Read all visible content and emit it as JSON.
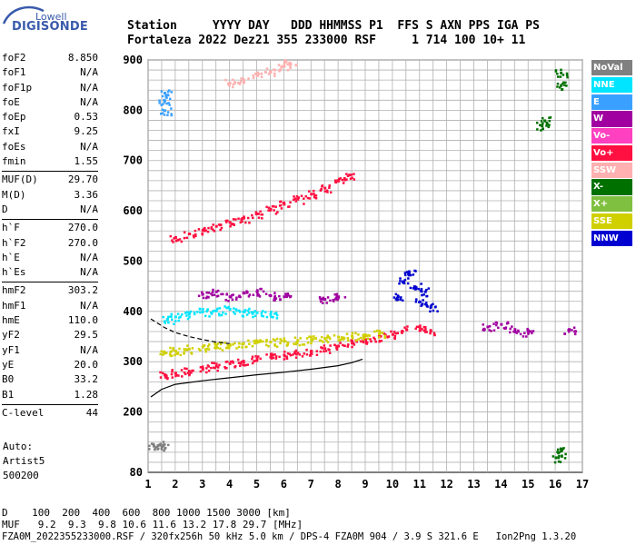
{
  "logo": {
    "line1": "Lowell",
    "line2": "DIGISONDE"
  },
  "header": {
    "line1": "Station     YYYY DAY   DDD HHMMSS P1  FFS S AXN PPS IGA PS",
    "line2": "Fortaleza 2022 Dez21 355 233000 RSF     1 714 100 10+ 11"
  },
  "params": {
    "group1": [
      {
        "name": "foF2",
        "value": "8.850"
      },
      {
        "name": "foF1",
        "value": "N/A"
      },
      {
        "name": "foF1p",
        "value": "N/A"
      },
      {
        "name": "foE",
        "value": "N/A"
      },
      {
        "name": "foEp",
        "value": "0.53"
      },
      {
        "name": "fxI",
        "value": "9.25"
      },
      {
        "name": "foEs",
        "value": "N/A"
      },
      {
        "name": "fmin",
        "value": "1.55"
      }
    ],
    "group2": [
      {
        "name": "MUF(D)",
        "value": "29.70"
      },
      {
        "name": "M(D)",
        "value": "3.36"
      },
      {
        "name": "D",
        "value": "N/A"
      }
    ],
    "group3": [
      {
        "name": "h`F",
        "value": "270.0"
      },
      {
        "name": "h`F2",
        "value": "270.0"
      },
      {
        "name": "h`E",
        "value": "N/A"
      },
      {
        "name": "h`Es",
        "value": "N/A"
      }
    ],
    "group4": [
      {
        "name": "hmF2",
        "value": "303.2"
      },
      {
        "name": "hmF1",
        "value": "N/A"
      },
      {
        "name": "hmE",
        "value": "110.0"
      },
      {
        "name": "yF2",
        "value": "29.5"
      },
      {
        "name": "yF1",
        "value": "N/A"
      },
      {
        "name": "yE",
        "value": "20.0"
      },
      {
        "name": "B0",
        "value": "33.2"
      },
      {
        "name": "B1",
        "value": "1.28"
      }
    ],
    "group5": [
      {
        "name": "C-level",
        "value": "44"
      }
    ],
    "auto": [
      "Auto:",
      "Artist5",
      "500200"
    ]
  },
  "legend": [
    {
      "label": "NoVal",
      "color": "#808080"
    },
    {
      "label": "NNE",
      "color": "#00e5ff"
    },
    {
      "label": "E",
      "color": "#3aa0ff"
    },
    {
      "label": "W",
      "color": "#a000a0"
    },
    {
      "label": "Vo-",
      "color": "#ff40c0"
    },
    {
      "label": "Vo+",
      "color": "#ff1040"
    },
    {
      "label": "SSW",
      "color": "#ffb0b0"
    },
    {
      "label": "X-",
      "color": "#007000"
    },
    {
      "label": "X+",
      "color": "#80c040"
    },
    {
      "label": "SSE",
      "color": "#d0d000"
    },
    {
      "label": "NNW",
      "color": "#0000d0"
    }
  ],
  "bottom": {
    "d_row": "D    100  200  400  600  800 1000 1500 3000 [km]",
    "muf_row": "MUF   9.2  9.3  9.8 10.6 11.6 13.2 17.8 29.7 [MHz]",
    "file_row": "FZA0M_2022355233000.RSF / 320fx256h 50 kHz 5.0 km / DPS-4 FZA0M 904 / 3.9 S 321.6 E   Ion2Png 1.3.20"
  },
  "chart_data": {
    "type": "scatter",
    "title": "",
    "xlabel": "",
    "ylabel": "",
    "xlim": [
      1,
      17
    ],
    "ylim": [
      80,
      900
    ],
    "x_ticks": [
      "1",
      "2",
      "3",
      "4",
      "5",
      "6",
      "7",
      "8",
      "9",
      "10",
      "11",
      "12",
      "13",
      "14",
      "15",
      "16",
      "17"
    ],
    "y_ticks": [
      {
        "value": 80,
        "label": "80"
      },
      {
        "value": 200,
        "label": "200"
      },
      {
        "value": 300,
        "label": "300"
      },
      {
        "value": 400,
        "label": "400"
      },
      {
        "value": 500,
        "label": "500"
      },
      {
        "value": 600,
        "label": "600"
      },
      {
        "value": 700,
        "label": "700"
      },
      {
        "value": 800,
        "label": "800"
      },
      {
        "value": 900,
        "label": "900"
      }
    ],
    "grid": true,
    "legend_position": "right",
    "series": [
      {
        "name": "F2 O-trace",
        "legend": "Vo+",
        "points": [
          [
            1.6,
            275
          ],
          [
            2.0,
            278
          ],
          [
            2.5,
            282
          ],
          [
            3.0,
            287
          ],
          [
            3.5,
            292
          ],
          [
            4.0,
            297
          ],
          [
            4.5,
            302
          ],
          [
            5.0,
            306
          ],
          [
            5.5,
            310
          ],
          [
            6.0,
            314
          ],
          [
            6.5,
            318
          ],
          [
            7.0,
            322
          ],
          [
            7.5,
            327
          ],
          [
            8.0,
            332
          ],
          [
            8.5,
            338
          ],
          [
            9.0,
            345
          ],
          [
            9.5,
            350
          ],
          [
            10.0,
            355
          ],
          [
            10.5,
            365
          ],
          [
            11.0,
            368
          ],
          [
            11.4,
            362
          ]
        ]
      },
      {
        "name": "F2 O-trace upper",
        "legend": "SSE",
        "points": [
          [
            1.6,
            318
          ],
          [
            2.0,
            322
          ],
          [
            2.5,
            326
          ],
          [
            3.0,
            330
          ],
          [
            3.5,
            333
          ],
          [
            4.0,
            335
          ],
          [
            4.5,
            337
          ],
          [
            5.0,
            339
          ],
          [
            5.5,
            340
          ],
          [
            6.0,
            342
          ],
          [
            6.5,
            343
          ],
          [
            7.0,
            345
          ],
          [
            7.5,
            347
          ],
          [
            8.0,
            350
          ],
          [
            8.5,
            352
          ],
          [
            9.0,
            354
          ],
          [
            9.5,
            356
          ]
        ]
      },
      {
        "name": "E cyan",
        "legend": "NNE",
        "points": [
          [
            1.7,
            385
          ],
          [
            2.0,
            390
          ],
          [
            2.5,
            395
          ],
          [
            3.0,
            400
          ],
          [
            3.5,
            402
          ],
          [
            4.0,
            405
          ],
          [
            4.5,
            400
          ],
          [
            5.0,
            398
          ],
          [
            5.5,
            395
          ]
        ]
      },
      {
        "name": "Oblique W",
        "legend": "W",
        "points": [
          [
            3.0,
            435
          ],
          [
            3.5,
            440
          ],
          [
            4.0,
            430
          ],
          [
            4.5,
            438
          ],
          [
            5.0,
            440
          ],
          [
            5.5,
            432
          ],
          [
            6.0,
            430
          ],
          [
            7.5,
            425
          ],
          [
            8.0,
            430
          ],
          [
            13.5,
            370
          ],
          [
            14.0,
            375
          ],
          [
            14.5,
            365
          ],
          [
            15.0,
            360
          ],
          [
            16.5,
            365
          ]
        ]
      },
      {
        "name": "Spread NNW",
        "legend": "NNW",
        "points": [
          [
            10.2,
            430
          ],
          [
            10.4,
            460
          ],
          [
            10.6,
            480
          ],
          [
            10.8,
            450
          ],
          [
            11.0,
            420
          ],
          [
            11.2,
            440
          ],
          [
            11.4,
            410
          ]
        ]
      },
      {
        "name": "Multi-hop Vo+",
        "legend": "Vo+",
        "points": [
          [
            2.0,
            548
          ],
          [
            2.5,
            555
          ],
          [
            3.0,
            562
          ],
          [
            3.5,
            570
          ],
          [
            4.0,
            578
          ],
          [
            4.5,
            586
          ],
          [
            5.0,
            595
          ],
          [
            5.5,
            604
          ],
          [
            6.0,
            614
          ],
          [
            6.5,
            624
          ],
          [
            7.0,
            634
          ],
          [
            7.5,
            646
          ],
          [
            8.0,
            660
          ],
          [
            8.4,
            672
          ]
        ]
      },
      {
        "name": "Multi-hop SSW",
        "legend": "SSW",
        "points": [
          [
            4.0,
            855
          ],
          [
            4.5,
            862
          ],
          [
            5.0,
            870
          ],
          [
            5.5,
            878
          ],
          [
            6.0,
            888
          ],
          [
            6.2,
            895
          ]
        ]
      },
      {
        "name": "Isolated E",
        "legend": "E",
        "points": [
          [
            1.6,
            800
          ],
          [
            1.6,
            820
          ],
          [
            1.6,
            835
          ]
        ]
      },
      {
        "name": "Low NoVal",
        "legend": "NoVal",
        "points": [
          [
            1.2,
            133
          ],
          [
            1.4,
            135
          ],
          [
            1.5,
            132
          ]
        ]
      },
      {
        "name": "Right X-",
        "legend": "X-",
        "points": [
          [
            15.5,
            770
          ],
          [
            15.6,
            780
          ],
          [
            16.2,
            875
          ],
          [
            16.2,
            850
          ],
          [
            16.1,
            110
          ],
          [
            16.2,
            123
          ]
        ]
      }
    ],
    "lines": [
      {
        "name": "profile",
        "points": [
          [
            1.1,
            230
          ],
          [
            1.5,
            245
          ],
          [
            2,
            255
          ],
          [
            3,
            262
          ],
          [
            4,
            268
          ],
          [
            5,
            274
          ],
          [
            6,
            279
          ],
          [
            7,
            285
          ],
          [
            8,
            292
          ],
          [
            8.5,
            298
          ],
          [
            8.9,
            305
          ]
        ]
      },
      {
        "name": "dashed",
        "dash": true,
        "points": [
          [
            1.1,
            385
          ],
          [
            1.6,
            368
          ],
          [
            2,
            358
          ],
          [
            2.5,
            350
          ],
          [
            3,
            344
          ],
          [
            3.5,
            339
          ],
          [
            4,
            336
          ]
        ]
      }
    ]
  }
}
